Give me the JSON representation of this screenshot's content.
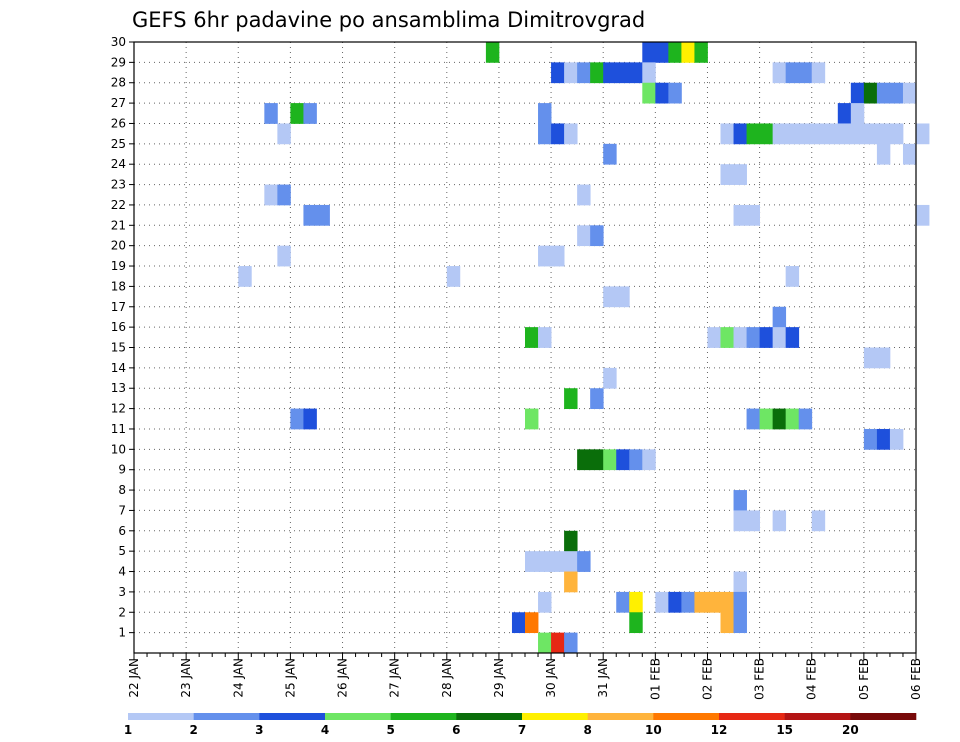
{
  "chart_data": {
    "type": "heatmap",
    "title": "GEFS 6hr padavine po ansamblima Dimitrovgrad",
    "x_range": [
      "22 JAN 00Z",
      "06 FEB 00Z"
    ],
    "x_step_hours": 6,
    "x_tick_labels": [
      "22 JAN",
      "23 JAN",
      "24 JAN",
      "25 JAN",
      "26 JAN",
      "27 JAN",
      "28 JAN",
      "29 JAN",
      "30 JAN",
      "31 JAN",
      "01 FEB",
      "02 FEB",
      "03 FEB",
      "04 FEB",
      "05 FEB",
      "06 FEB"
    ],
    "y_label_members": [
      "1",
      "2",
      "3",
      "4",
      "5",
      "6",
      "7",
      "8",
      "9",
      "10",
      "11",
      "12",
      "13",
      "14",
      "15",
      "16",
      "17",
      "18",
      "19",
      "20",
      "21",
      "22",
      "23",
      "24",
      "25",
      "26",
      "27",
      "28",
      "29",
      "30"
    ],
    "y_range": [
      0,
      30
    ],
    "grid": true,
    "colorbar": {
      "levels": [
        "1",
        "2",
        "3",
        "4",
        "5",
        "6",
        "7",
        "8",
        "10",
        "12",
        "15",
        "20"
      ],
      "colors": [
        "#b4c8f5",
        "#6490ec",
        "#1e50dc",
        "#6ee664",
        "#1eb41e",
        "#0a6e0a",
        "#fff000",
        "#ffb43c",
        "#ff7800",
        "#e62814",
        "#b41414",
        "#780a0a"
      ],
      "placement": "bottom"
    },
    "cells": [
      {
        "m": 30,
        "x": [
          27
        ],
        "c": 4
      },
      {
        "m": 30,
        "x": [
          39,
          40
        ],
        "c": 2
      },
      {
        "m": 30,
        "x": [
          41
        ],
        "c": 4
      },
      {
        "m": 30,
        "x": [
          42
        ],
        "c": 6
      },
      {
        "m": 30,
        "x": [
          43
        ],
        "c": 4
      },
      {
        "m": 29,
        "x": [
          32
        ],
        "c": 2
      },
      {
        "m": 29,
        "x": [
          33
        ],
        "c": 0
      },
      {
        "m": 29,
        "x": [
          34
        ],
        "c": 1
      },
      {
        "m": 29,
        "x": [
          35
        ],
        "c": 4
      },
      {
        "m": 29,
        "x": [
          36
        ],
        "c": 2
      },
      {
        "m": 29,
        "x": [
          37,
          38
        ],
        "c": 2
      },
      {
        "m": 29,
        "x": [
          39
        ],
        "c": 0
      },
      {
        "m": 29,
        "x": [
          49
        ],
        "c": 0
      },
      {
        "m": 29,
        "x": [
          50,
          51
        ],
        "c": 1
      },
      {
        "m": 29,
        "x": [
          52
        ],
        "c": 0
      },
      {
        "m": 28,
        "x": [
          39
        ],
        "c": 3
      },
      {
        "m": 28,
        "x": [
          40
        ],
        "c": 2
      },
      {
        "m": 28,
        "x": [
          41
        ],
        "c": 1
      },
      {
        "m": 28,
        "x": [
          55
        ],
        "c": 2
      },
      {
        "m": 28,
        "x": [
          56
        ],
        "c": 5
      },
      {
        "m": 28,
        "x": [
          57,
          58
        ],
        "c": 1
      },
      {
        "m": 28,
        "x": [
          59
        ],
        "c": 0
      },
      {
        "m": 27,
        "x": [
          10
        ],
        "c": 1
      },
      {
        "m": 27,
        "x": [
          12
        ],
        "c": 4
      },
      {
        "m": 27,
        "x": [
          13
        ],
        "c": 1
      },
      {
        "m": 27,
        "x": [
          31
        ],
        "c": 1
      },
      {
        "m": 27,
        "x": [
          54
        ],
        "c": 2
      },
      {
        "m": 27,
        "x": [
          55
        ],
        "c": 0
      },
      {
        "m": 26,
        "x": [
          11
        ],
        "c": 0
      },
      {
        "m": 26,
        "x": [
          31
        ],
        "c": 1
      },
      {
        "m": 26,
        "x": [
          32
        ],
        "c": 2
      },
      {
        "m": 26,
        "x": [
          33
        ],
        "c": 0
      },
      {
        "m": 26,
        "x": [
          45
        ],
        "c": 0
      },
      {
        "m": 26,
        "x": [
          46
        ],
        "c": 2
      },
      {
        "m": 26,
        "x": [
          47,
          48
        ],
        "c": 4
      },
      {
        "m": 26,
        "x": [
          49,
          50,
          51,
          52,
          53,
          54,
          55,
          56,
          57,
          58
        ],
        "c": 0
      },
      {
        "m": 26,
        "x": [
          60
        ],
        "c": 0
      },
      {
        "m": 25,
        "x": [
          36
        ],
        "c": 1
      },
      {
        "m": 25,
        "x": [
          57
        ],
        "c": 0
      },
      {
        "m": 25,
        "x": [
          59
        ],
        "c": 0
      },
      {
        "m": 24,
        "x": [
          45,
          46
        ],
        "c": 0
      },
      {
        "m": 23,
        "x": [
          10
        ],
        "c": 0
      },
      {
        "m": 23,
        "x": [
          11
        ],
        "c": 1
      },
      {
        "m": 23,
        "x": [
          34
        ],
        "c": 0
      },
      {
        "m": 22,
        "x": [
          13,
          14
        ],
        "c": 1
      },
      {
        "m": 22,
        "x": [
          46,
          47
        ],
        "c": 0
      },
      {
        "m": 22,
        "x": [
          60
        ],
        "c": 0
      },
      {
        "m": 21,
        "x": [
          34
        ],
        "c": 0
      },
      {
        "m": 21,
        "x": [
          35
        ],
        "c": 1
      },
      {
        "m": 20,
        "x": [
          11
        ],
        "c": 0
      },
      {
        "m": 20,
        "x": [
          31,
          32
        ],
        "c": 0
      },
      {
        "m": 19,
        "x": [
          8
        ],
        "c": 0
      },
      {
        "m": 19,
        "x": [
          24
        ],
        "c": 0
      },
      {
        "m": 19,
        "x": [
          50
        ],
        "c": 0
      },
      {
        "m": 18,
        "x": [
          36,
          37
        ],
        "c": 0
      },
      {
        "m": 17,
        "x": [
          49
        ],
        "c": 1
      },
      {
        "m": 16,
        "x": [
          30
        ],
        "c": 4
      },
      {
        "m": 16,
        "x": [
          31
        ],
        "c": 0
      },
      {
        "m": 16,
        "x": [
          44
        ],
        "c": 0
      },
      {
        "m": 16,
        "x": [
          45
        ],
        "c": 3
      },
      {
        "m": 16,
        "x": [
          46
        ],
        "c": 0
      },
      {
        "m": 16,
        "x": [
          47
        ],
        "c": 1
      },
      {
        "m": 16,
        "x": [
          48
        ],
        "c": 2
      },
      {
        "m": 16,
        "x": [
          49
        ],
        "c": 0
      },
      {
        "m": 16,
        "x": [
          50
        ],
        "c": 2
      },
      {
        "m": 15,
        "x": [
          56,
          57
        ],
        "c": 0
      },
      {
        "m": 14,
        "x": [
          36
        ],
        "c": 0
      },
      {
        "m": 13,
        "x": [
          33
        ],
        "c": 4
      },
      {
        "m": 13,
        "x": [
          35
        ],
        "c": 1
      },
      {
        "m": 12,
        "x": [
          12
        ],
        "c": 1
      },
      {
        "m": 12,
        "x": [
          13
        ],
        "c": 2
      },
      {
        "m": 12,
        "x": [
          30
        ],
        "c": 3
      },
      {
        "m": 12,
        "x": [
          47
        ],
        "c": 1
      },
      {
        "m": 12,
        "x": [
          48
        ],
        "c": 3
      },
      {
        "m": 12,
        "x": [
          49
        ],
        "c": 5
      },
      {
        "m": 12,
        "x": [
          50
        ],
        "c": 3
      },
      {
        "m": 12,
        "x": [
          51
        ],
        "c": 1
      },
      {
        "m": 11,
        "x": [
          56
        ],
        "c": 1
      },
      {
        "m": 11,
        "x": [
          57
        ],
        "c": 2
      },
      {
        "m": 11,
        "x": [
          58
        ],
        "c": 0
      },
      {
        "m": 10,
        "x": [
          34,
          35
        ],
        "c": 5
      },
      {
        "m": 10,
        "x": [
          36
        ],
        "c": 3
      },
      {
        "m": 10,
        "x": [
          37
        ],
        "c": 2
      },
      {
        "m": 10,
        "x": [
          38
        ],
        "c": 1
      },
      {
        "m": 10,
        "x": [
          39
        ],
        "c": 0
      },
      {
        "m": 8,
        "x": [
          46
        ],
        "c": 1
      },
      {
        "m": 7,
        "x": [
          46,
          47
        ],
        "c": 0
      },
      {
        "m": 7,
        "x": [
          49
        ],
        "c": 0
      },
      {
        "m": 7,
        "x": [
          52
        ],
        "c": 0
      },
      {
        "m": 6,
        "x": [
          33
        ],
        "c": 5
      },
      {
        "m": 5,
        "x": [
          30,
          31,
          32
        ],
        "c": 0
      },
      {
        "m": 5,
        "x": [
          33
        ],
        "c": 0
      },
      {
        "m": 5,
        "x": [
          34
        ],
        "c": 1
      },
      {
        "m": 4,
        "x": [
          33
        ],
        "c": 7
      },
      {
        "m": 4,
        "x": [
          46
        ],
        "c": 0
      },
      {
        "m": 3,
        "x": [
          31
        ],
        "c": 0
      },
      {
        "m": 3,
        "x": [
          37
        ],
        "c": 1
      },
      {
        "m": 3,
        "x": [
          38
        ],
        "c": 6
      },
      {
        "m": 3,
        "x": [
          40
        ],
        "c": 0
      },
      {
        "m": 3,
        "x": [
          41
        ],
        "c": 2
      },
      {
        "m": 3,
        "x": [
          42
        ],
        "c": 1
      },
      {
        "m": 3,
        "x": [
          43,
          44,
          45
        ],
        "c": 7
      },
      {
        "m": 3,
        "x": [
          46
        ],
        "c": 1
      },
      {
        "m": 2,
        "x": [
          29
        ],
        "c": 2
      },
      {
        "m": 2,
        "x": [
          30
        ],
        "c": 8
      },
      {
        "m": 2,
        "x": [
          38
        ],
        "c": 4
      },
      {
        "m": 2,
        "x": [
          45
        ],
        "c": 7
      },
      {
        "m": 2,
        "x": [
          46
        ],
        "c": 1
      },
      {
        "m": 1,
        "x": [
          31
        ],
        "c": 3
      },
      {
        "m": 1,
        "x": [
          32
        ],
        "c": 9
      },
      {
        "m": 1,
        "x": [
          33
        ],
        "c": 1
      }
    ]
  }
}
